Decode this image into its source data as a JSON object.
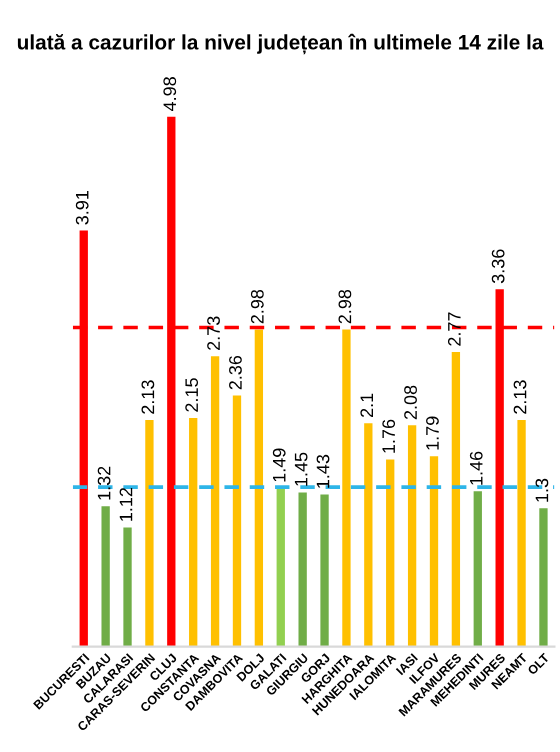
{
  "chart_data": {
    "type": "bar",
    "title": "ulată a cazurilor la nivel județean în ultimele 14 zile la",
    "categories": [
      "BUCURESTI",
      "BUZAU",
      "CALARASI",
      "CARAS-SEVERIN",
      "CLUJ",
      "CONSTANTA",
      "COVASNA",
      "DAMBOVITA",
      "DOLJ",
      "GALATI",
      "GIURGIU",
      "GORJ",
      "HARGHITA",
      "HUNEDOARA",
      "IALOMITA",
      "IASI",
      "ILFOV",
      "MARAMURES",
      "MEHEDINTI",
      "MURES",
      "NEAMT",
      "OLT"
    ],
    "values": [
      3.91,
      1.32,
      1.12,
      2.13,
      4.98,
      2.15,
      2.73,
      2.36,
      2.98,
      1.49,
      1.45,
      1.43,
      2.98,
      2.1,
      1.76,
      2.08,
      1.79,
      2.77,
      1.46,
      3.36,
      2.13,
      1.3
    ],
    "colors": [
      "#ff0000",
      "#70ad47",
      "#70ad47",
      "#ffc000",
      "#ff0000",
      "#ffc000",
      "#ffc000",
      "#ffc000",
      "#ffc000",
      "#92d050",
      "#70ad47",
      "#70ad47",
      "#ffc000",
      "#ffc000",
      "#ffc000",
      "#ffc000",
      "#ffc000",
      "#ffc000",
      "#70ad47",
      "#ff0000",
      "#ffc000",
      "#70ad47"
    ],
    "tick_labels": "x",
    "data_labels": true,
    "grid": false,
    "legend": false,
    "ref_lines": [
      {
        "axis": "y",
        "value": 3,
        "color": "#ff0000",
        "line_style": "dashed"
      },
      {
        "axis": "y",
        "value": 1.5,
        "color": "#2eb5e8",
        "line_style": "dashed"
      }
    ]
  }
}
